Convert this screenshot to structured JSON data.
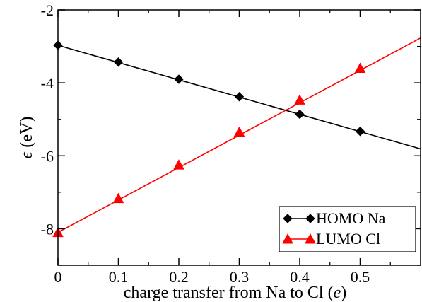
{
  "chart_data": {
    "type": "line",
    "title": "",
    "xlabel": {
      "prefix": "charge transfer from Na to Cl (",
      "italic": "e",
      "suffix": ")"
    },
    "ylabel": {
      "italic": "ϵ",
      "suffix": " (eV)"
    },
    "xlim": [
      0,
      0.6
    ],
    "ylim": [
      -9,
      -2
    ],
    "xticks": [
      0,
      0.1,
      0.2,
      0.3,
      0.4,
      0.5
    ],
    "xtick_labels": [
      "0",
      "0.1",
      "0.2",
      "0.3",
      "0.4",
      "0.5"
    ],
    "yticks": [
      -8,
      -6,
      -4,
      -2
    ],
    "ytick_labels": [
      "-8",
      "-6",
      "-4",
      "-2"
    ],
    "grid": false,
    "legend": {
      "placement": "bottom-right"
    },
    "series": [
      {
        "name": "HOMO Na",
        "color": "#000000",
        "marker": "diamond",
        "x": [
          0,
          0.1,
          0.2,
          0.3,
          0.4,
          0.5
        ],
        "y": [
          -2.97,
          -3.43,
          -3.9,
          -4.38,
          -4.86,
          -5.33
        ],
        "line": {
          "x": [
            0,
            0.6
          ],
          "y": [
            -2.97,
            -5.81
          ]
        }
      },
      {
        "name": "LUMO Cl",
        "color": "#ff0000",
        "marker": "triangle",
        "x": [
          0,
          0.1,
          0.2,
          0.3,
          0.4,
          0.5
        ],
        "y": [
          -8.1,
          -7.17,
          -6.25,
          -5.35,
          -4.47,
          -3.6
        ],
        "line": {
          "x": [
            0,
            0.6
          ],
          "y": [
            -8.1,
            -2.77
          ]
        }
      }
    ]
  }
}
